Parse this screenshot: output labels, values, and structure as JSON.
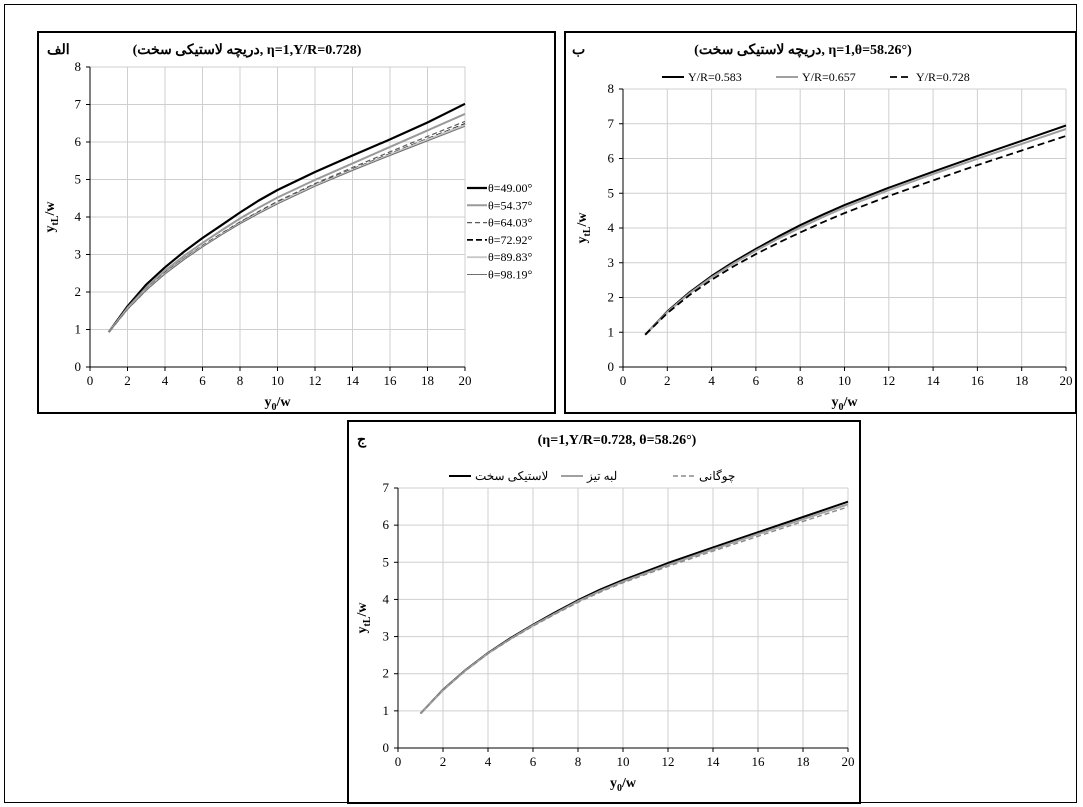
{
  "chart_data": [
    {
      "type": "line",
      "panel_label": "الف",
      "title": "(دریچه لاستیکی سخت, η=1,Y/R=0.728)",
      "xlabel": "y0/w",
      "ylabel": "ytL/w",
      "xlim": [
        0,
        20
      ],
      "ylim": [
        0,
        8
      ],
      "xticks": [
        0,
        2,
        4,
        6,
        8,
        10,
        12,
        14,
        16,
        18,
        20
      ],
      "yticks": [
        0,
        1,
        2,
        3,
        4,
        5,
        6,
        7,
        8
      ],
      "grid": true,
      "legend_position": "right",
      "x": [
        1,
        2,
        3,
        4,
        5,
        6,
        7,
        8,
        9,
        10,
        12,
        14,
        16,
        18,
        20
      ],
      "series": [
        {
          "name": "θ=49.00°",
          "color": "#000000",
          "dash": "solid",
          "width": 2.2,
          "values": [
            0.93,
            1.62,
            2.2,
            2.66,
            3.07,
            3.44,
            3.78,
            4.12,
            4.44,
            4.72,
            5.2,
            5.64,
            6.07,
            6.52,
            7.02
          ]
        },
        {
          "name": "θ=54.37°",
          "color": "#9a9a9a",
          "dash": "solid",
          "width": 2.0,
          "values": [
            0.93,
            1.58,
            2.12,
            2.57,
            2.96,
            3.31,
            3.64,
            3.96,
            4.25,
            4.52,
            4.99,
            5.43,
            5.87,
            6.31,
            6.75
          ]
        },
        {
          "name": "θ=64.03°",
          "color": "#5a5a5a",
          "dash": "5,3",
          "width": 1.2,
          "values": [
            0.93,
            1.56,
            2.08,
            2.52,
            2.9,
            3.24,
            3.56,
            3.87,
            4.15,
            4.42,
            4.89,
            5.32,
            5.74,
            6.15,
            6.55
          ]
        },
        {
          "name": "θ=72.92°",
          "color": "#000000",
          "dash": "6,3",
          "width": 1.8,
          "values": [
            0.93,
            1.55,
            2.06,
            2.5,
            2.88,
            3.22,
            3.54,
            3.84,
            4.12,
            4.38,
            4.85,
            5.27,
            5.68,
            6.08,
            6.48
          ]
        },
        {
          "name": "θ=89.83°",
          "color": "#c8c8c8",
          "dash": "solid",
          "width": 1.8,
          "values": [
            0.93,
            1.55,
            2.06,
            2.49,
            2.87,
            3.21,
            3.53,
            3.83,
            4.11,
            4.37,
            4.84,
            5.26,
            5.67,
            6.07,
            6.46
          ]
        },
        {
          "name": "θ=98.19°",
          "color": "#707070",
          "dash": "solid",
          "width": 1.0,
          "values": [
            0.93,
            1.54,
            2.05,
            2.48,
            2.86,
            3.2,
            3.52,
            3.82,
            4.09,
            4.35,
            4.82,
            5.24,
            5.64,
            6.03,
            6.42
          ]
        }
      ]
    },
    {
      "type": "line",
      "panel_label": "ب",
      "title": "(دریچه لاستیکی سخت, η=1,θ=58.26°)",
      "xlabel": "y0/w",
      "ylabel": "ytL/w",
      "xlim": [
        0,
        20
      ],
      "ylim": [
        0,
        8
      ],
      "xticks": [
        0,
        2,
        4,
        6,
        8,
        10,
        12,
        14,
        16,
        18,
        20
      ],
      "yticks": [
        0,
        1,
        2,
        3,
        4,
        5,
        6,
        7,
        8
      ],
      "grid": true,
      "legend_position": "top",
      "x": [
        1,
        2,
        3,
        4,
        5,
        6,
        7,
        8,
        9,
        10,
        12,
        14,
        16,
        18,
        20
      ],
      "series": [
        {
          "name": "Y/R=0.583",
          "color": "#000000",
          "dash": "solid",
          "width": 2.0,
          "values": [
            0.93,
            1.6,
            2.15,
            2.62,
            3.03,
            3.4,
            3.75,
            4.08,
            4.38,
            4.66,
            5.16,
            5.62,
            6.07,
            6.51,
            6.95
          ]
        },
        {
          "name": "Y/R=0.657",
          "color": "#a0a0a0",
          "dash": "solid",
          "width": 2.0,
          "values": [
            0.93,
            1.58,
            2.12,
            2.58,
            2.98,
            3.35,
            3.69,
            4.01,
            4.31,
            4.59,
            5.09,
            5.55,
            5.99,
            6.42,
            6.85
          ]
        },
        {
          "name": "Y/R=0.728",
          "color": "#000000",
          "dash": "7,4",
          "width": 1.8,
          "values": [
            0.93,
            1.55,
            2.07,
            2.51,
            2.9,
            3.25,
            3.57,
            3.87,
            4.16,
            4.43,
            4.92,
            5.37,
            5.81,
            6.23,
            6.65
          ]
        }
      ]
    },
    {
      "type": "line",
      "panel_label": "ج",
      "title": "(η=1,Y/R=0.728, θ=58.26°)",
      "xlabel": "y0/w",
      "ylabel": "ytL/w",
      "xlim": [
        0,
        20
      ],
      "ylim": [
        0,
        7
      ],
      "xticks": [
        0,
        2,
        4,
        6,
        8,
        10,
        12,
        14,
        16,
        18,
        20
      ],
      "yticks": [
        0,
        1,
        2,
        3,
        4,
        5,
        6,
        7
      ],
      "grid": true,
      "legend_position": "top",
      "x": [
        1,
        2,
        3,
        4,
        5,
        6,
        7,
        8,
        9,
        10,
        12,
        14,
        16,
        18,
        20
      ],
      "series": [
        {
          "name": "لاستیکی سخت",
          "color": "#000000",
          "dash": "solid",
          "width": 2.0,
          "values": [
            0.93,
            1.57,
            2.1,
            2.56,
            2.96,
            3.32,
            3.66,
            3.98,
            4.27,
            4.52,
            4.98,
            5.4,
            5.81,
            6.22,
            6.63
          ]
        },
        {
          "name": "لبه تیز",
          "color": "#a0a0a0",
          "dash": "solid",
          "width": 2.0,
          "values": [
            0.93,
            1.56,
            2.09,
            2.55,
            2.94,
            3.3,
            3.63,
            3.95,
            4.23,
            4.48,
            4.93,
            5.35,
            5.76,
            6.16,
            6.56
          ]
        },
        {
          "name": "چوگانی",
          "color": "#8a8a8a",
          "dash": "5,3",
          "width": 1.4,
          "values": [
            0.93,
            1.56,
            2.08,
            2.54,
            2.93,
            3.28,
            3.61,
            3.92,
            4.2,
            4.45,
            4.89,
            5.3,
            5.7,
            6.1,
            6.49
          ]
        }
      ]
    }
  ]
}
